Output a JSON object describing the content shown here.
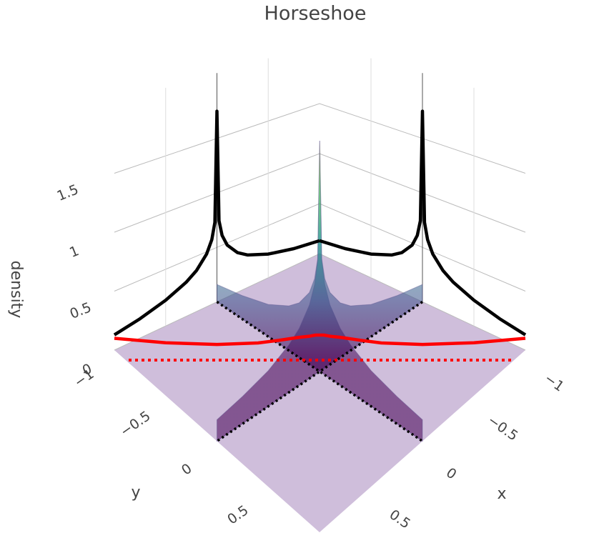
{
  "chart_data": {
    "type": "surface3d",
    "title": "Horseshoe",
    "xaxis_title": "x",
    "yaxis_title": "y",
    "zaxis_title": "density",
    "xlim": [
      -1,
      1
    ],
    "ylim": [
      -1,
      1
    ],
    "zlim": [
      0,
      2.1
    ],
    "xticks": [
      {
        "value": -1,
        "label": "−1"
      },
      {
        "value": -0.5,
        "label": "−0.5"
      },
      0,
      0.5
    ],
    "yticks": [
      {
        "value": -1,
        "label": "−1"
      },
      {
        "value": -0.5,
        "label": "−0.5"
      },
      0,
      0.5
    ],
    "zticks": [
      0,
      0.5,
      1,
      1.5
    ],
    "grid": true,
    "x": [
      -1,
      -0.75,
      -0.5,
      -0.3,
      -0.2,
      -0.1,
      -0.05,
      -0.02,
      0,
      0.02,
      0.05,
      0.1,
      0.2,
      0.3,
      0.5,
      0.75,
      1
    ],
    "surface": {
      "colorscale": [
        "#440154",
        "#3b528b",
        "#21918c",
        "#5ec962",
        "#fde725"
      ],
      "floor_color": "#c7b3d5",
      "values": [
        0.16,
        0.21,
        0.28,
        0.38,
        0.46,
        0.6,
        0.74,
        0.92,
        1.9,
        0.92,
        0.74,
        0.6,
        0.46,
        0.38,
        0.28,
        0.21,
        0.16
      ]
    },
    "series": [
      {
        "along": "x",
        "color": "#000000",
        "values": [
          0.129,
          0.167,
          0.227,
          0.305,
          0.369,
          0.48,
          0.59,
          0.737,
          1.75,
          0.737,
          0.59,
          0.48,
          0.369,
          0.305,
          0.227,
          0.167,
          0.129
        ]
      },
      {
        "along": "y",
        "color": "#000000",
        "values": [
          0.129,
          0.167,
          0.227,
          0.305,
          0.369,
          0.48,
          0.59,
          0.737,
          1.75,
          0.737,
          0.59,
          0.48,
          0.369,
          0.305,
          0.227,
          0.167,
          0.129
        ]
      },
      {
        "along": "diagonal",
        "color": "#ff0000",
        "values": [
          0.1,
          0.14,
          0.18,
          0.22,
          0.25,
          0.28,
          0.29,
          0.3,
          0.3,
          0.3,
          0.29,
          0.28,
          0.25,
          0.22,
          0.18,
          0.14,
          0.1
        ]
      }
    ]
  }
}
